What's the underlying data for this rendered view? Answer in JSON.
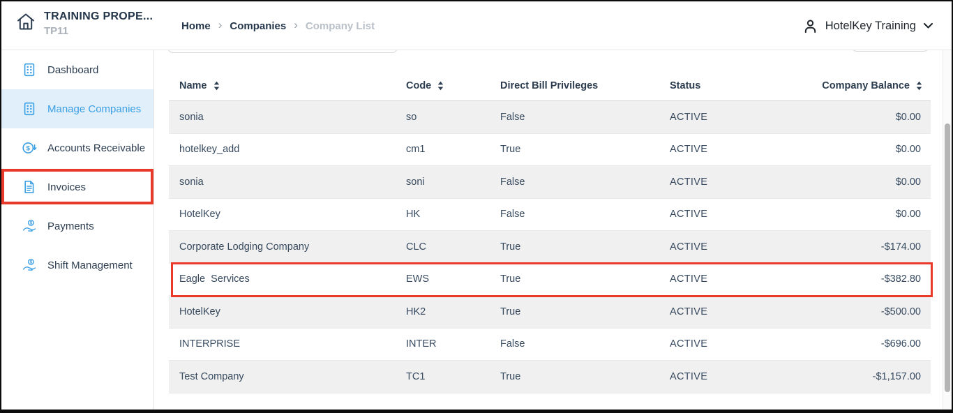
{
  "app": {
    "property_name": "TRAINING PROPE...",
    "property_code": "TP11"
  },
  "breadcrumb": {
    "separator": "›",
    "items": [
      "Home",
      "Companies",
      "Company List"
    ]
  },
  "user_menu": {
    "label": "HotelKey Training"
  },
  "sidebar": {
    "items": [
      {
        "label": "Dashboard",
        "icon": "building-icon",
        "selected": false,
        "annotated": false
      },
      {
        "label": "Manage Companies",
        "icon": "building-icon",
        "selected": true,
        "annotated": false
      },
      {
        "label": "Accounts Receivable",
        "icon": "dollar-circle-icon",
        "selected": false,
        "annotated": false
      },
      {
        "label": "Invoices",
        "icon": "invoice-icon",
        "selected": false,
        "annotated": true
      },
      {
        "label": "Payments",
        "icon": "hand-coin-icon",
        "selected": false,
        "annotated": false
      },
      {
        "label": "Shift Management",
        "icon": "hand-coin-icon",
        "selected": false,
        "annotated": false
      }
    ]
  },
  "table": {
    "columns": [
      {
        "label": "Name",
        "sortable": true
      },
      {
        "label": "Code",
        "sortable": true
      },
      {
        "label": "Direct Bill Privileges",
        "sortable": false
      },
      {
        "label": "Status",
        "sortable": false
      },
      {
        "label": "Company Balance",
        "sortable": true
      }
    ],
    "rows": [
      {
        "name": "sonia",
        "code": "so",
        "direct_bill": "False",
        "status": "ACTIVE",
        "balance": "$0.00",
        "highlighted": false
      },
      {
        "name": "hotelkey_add",
        "code": "cm1",
        "direct_bill": "True",
        "status": "ACTIVE",
        "balance": "$0.00",
        "highlighted": false
      },
      {
        "name": "sonia",
        "code": "soni",
        "direct_bill": "False",
        "status": "ACTIVE",
        "balance": "$0.00",
        "highlighted": false
      },
      {
        "name": "HotelKey",
        "code": "HK",
        "direct_bill": "False",
        "status": "ACTIVE",
        "balance": "$0.00",
        "highlighted": false
      },
      {
        "name": "Corporate Lodging Company",
        "code": "CLC",
        "direct_bill": "True",
        "status": "ACTIVE",
        "balance": "-$174.00",
        "highlighted": false
      },
      {
        "name": "Eagle  Services",
        "code": "EWS",
        "direct_bill": "True",
        "status": "ACTIVE",
        "balance": "-$382.80",
        "highlighted": true
      },
      {
        "name": "HotelKey",
        "code": "HK2",
        "direct_bill": "True",
        "status": "ACTIVE",
        "balance": "-$500.00",
        "highlighted": false
      },
      {
        "name": "INTERPRISE",
        "code": "INTER",
        "direct_bill": "False",
        "status": "ACTIVE",
        "balance": "-$696.00",
        "highlighted": false
      },
      {
        "name": "Test Company",
        "code": "TC1",
        "direct_bill": "True",
        "status": "ACTIVE",
        "balance": "-$1,157.00",
        "highlighted": false
      }
    ]
  },
  "colors": {
    "accent_blue": "#3ba0e3",
    "selected_item_bg": "#e0effa",
    "annotation_red": "#e8392b",
    "navy_text": "#2c3d50",
    "muted_text": "#a9b0b8",
    "row_alt_bg": "#f0f0f0"
  }
}
